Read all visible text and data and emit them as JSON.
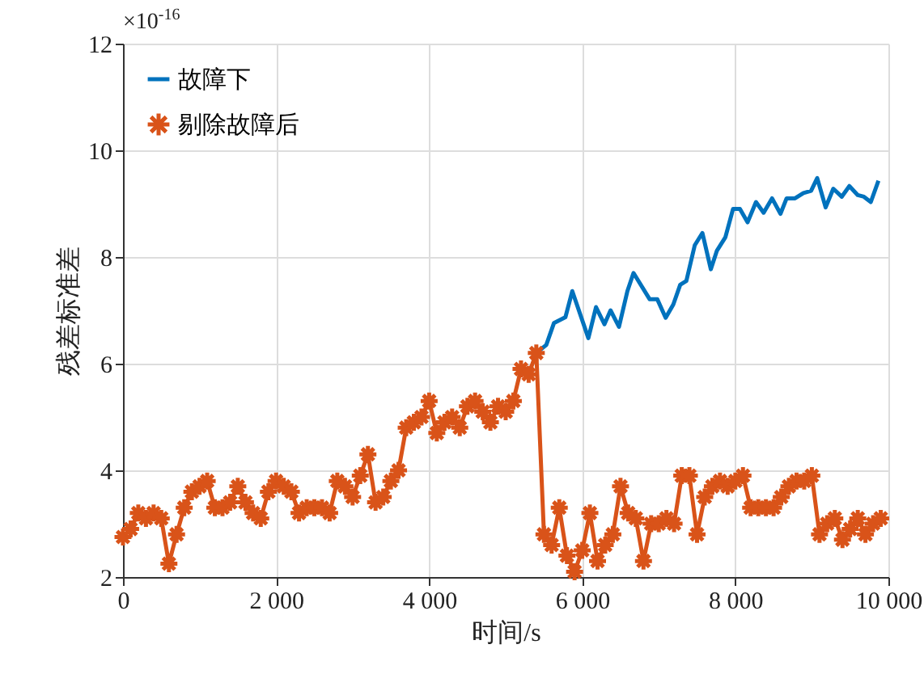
{
  "chart_data": {
    "type": "line",
    "xlabel": "时间/s",
    "ylabel": "残差标准差",
    "annotations": [
      "×10$^{-16}$"
    ],
    "xlim": [
      0,
      10000
    ],
    "xticks": [
      0,
      {
        "value": 2000,
        "label": "2 000"
      },
      {
        "value": 4000,
        "label": "4 000"
      },
      {
        "value": 6000,
        "label": "6 000"
      },
      {
        "value": 8000,
        "label": "8 000"
      },
      {
        "value": 10000,
        "label": "10 000"
      }
    ],
    "ylim": [
      2,
      12
    ],
    "yticks": [
      2,
      4,
      6,
      8,
      10,
      12
    ],
    "grid": true,
    "legend": "top left",
    "line_style": "solid",
    "series": [
      {
        "name": "故障下",
        "color": "#0072bd",
        "marker": "none",
        "x": [
          5400,
          5530,
          5630,
          5780,
          5870,
          6080,
          6180,
          6290,
          6370,
          6480,
          6590,
          6670,
          6880,
          6980,
          7090,
          7190,
          7280,
          7360,
          7470,
          7570,
          7680,
          7760,
          7870,
          7970,
          8060,
          8160,
          8270,
          8370,
          8480,
          8590,
          8670,
          8780,
          8890,
          8990,
          9070,
          9180,
          9280,
          9390,
          9490,
          9600,
          9680,
          9770,
          9870
        ],
        "values": [
          6.2,
          6.35,
          6.76,
          6.87,
          7.36,
          6.48,
          7.06,
          6.74,
          7.0,
          6.69,
          7.36,
          7.7,
          7.21,
          7.21,
          6.86,
          7.11,
          7.48,
          7.55,
          8.22,
          8.45,
          7.77,
          8.12,
          8.37,
          8.9,
          8.9,
          8.65,
          9.03,
          8.83,
          9.1,
          8.81,
          9.1,
          9.1,
          9.2,
          9.24,
          9.48,
          8.93,
          9.28,
          9.13,
          9.33,
          9.16,
          9.13,
          9.03,
          9.43
        ]
      },
      {
        "name": "剔除故障后",
        "color": "#d95319",
        "marker": "cross",
        "x": [
          0,
          100,
          200,
          300,
          400,
          500,
          600,
          700,
          800,
          900,
          1000,
          1100,
          1200,
          1300,
          1400,
          1500,
          1600,
          1700,
          1800,
          1900,
          2000,
          2100,
          2200,
          2300,
          2400,
          2500,
          2600,
          2700,
          2800,
          2900,
          3000,
          3100,
          3200,
          3300,
          3400,
          3500,
          3600,
          3700,
          3800,
          3900,
          4000,
          4100,
          4200,
          4300,
          4400,
          4500,
          4600,
          4700,
          4800,
          4900,
          5000,
          5100,
          5200,
          5300,
          5400,
          5500,
          5600,
          5700,
          5800,
          5900,
          6000,
          6100,
          6200,
          6300,
          6400,
          6500,
          6600,
          6700,
          6800,
          6900,
          7000,
          7100,
          7200,
          7300,
          7400,
          7500,
          7600,
          7700,
          7800,
          7900,
          8000,
          8100,
          8200,
          8300,
          8400,
          8500,
          8600,
          8700,
          8800,
          8900,
          9000,
          9100,
          9200,
          9300,
          9400,
          9500,
          9600,
          9700,
          9800,
          9900
        ],
        "values": [
          2.75,
          2.9,
          3.2,
          3.1,
          3.2,
          3.1,
          2.25,
          2.8,
          3.3,
          3.6,
          3.7,
          3.8,
          3.3,
          3.3,
          3.4,
          3.7,
          3.4,
          3.2,
          3.1,
          3.6,
          3.8,
          3.7,
          3.6,
          3.2,
          3.3,
          3.3,
          3.3,
          3.2,
          3.8,
          3.7,
          3.5,
          3.9,
          4.3,
          3.4,
          3.5,
          3.8,
          4.0,
          4.8,
          4.9,
          5.0,
          5.3,
          4.7,
          4.9,
          5.0,
          4.8,
          5.2,
          5.3,
          5.1,
          4.9,
          5.2,
          5.1,
          5.3,
          5.9,
          5.8,
          6.2,
          2.8,
          2.6,
          3.3,
          2.4,
          2.1,
          2.5,
          3.2,
          2.3,
          2.6,
          2.8,
          3.7,
          3.2,
          3.1,
          2.3,
          3.0,
          3.0,
          3.1,
          3.0,
          3.9,
          3.9,
          2.8,
          3.5,
          3.7,
          3.8,
          3.7,
          3.8,
          3.9,
          3.3,
          3.3,
          3.3,
          3.3,
          3.5,
          3.7,
          3.8,
          3.8,
          3.9,
          2.8,
          3.0,
          3.1,
          2.7,
          2.9,
          3.1,
          2.8,
          3.0,
          3.1
        ]
      }
    ]
  }
}
